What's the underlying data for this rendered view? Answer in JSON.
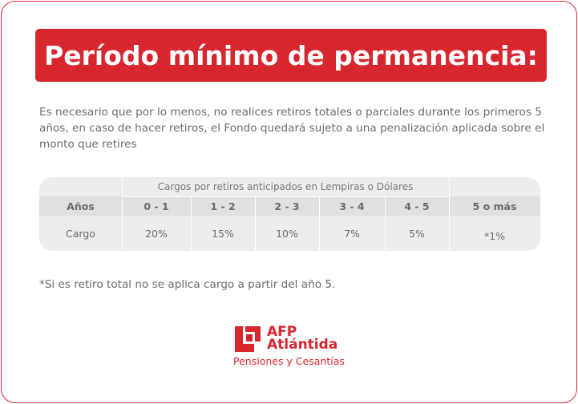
{
  "banner": {
    "title": "Período mínimo de permanencia:"
  },
  "intro": {
    "text": "Es necesario que por lo menos, no realices retiros totales o parciales durante los primeros 5 años, en caso de hacer retiros, el Fondo quedará sujeto a una penalización aplicada sobre el monto que retires"
  },
  "table": {
    "caption": "Cargos por retiros anticipados en Lempiras o Dólares",
    "headers": [
      "Años",
      "0 - 1",
      "1 - 2",
      "2 - 3",
      "3 - 4",
      "4 - 5",
      "5 o más"
    ],
    "row": [
      "Cargo",
      "20%",
      "15%",
      "10%",
      "7%",
      "5%",
      "*1%"
    ]
  },
  "note": {
    "text": "*Si es retiro total no se aplica cargo a partir del año 5."
  },
  "logo": {
    "line1": "AFP",
    "line2": "Atlántida",
    "tagline": "Pensiones y Cesantías",
    "brand_color": "#d8262f"
  }
}
